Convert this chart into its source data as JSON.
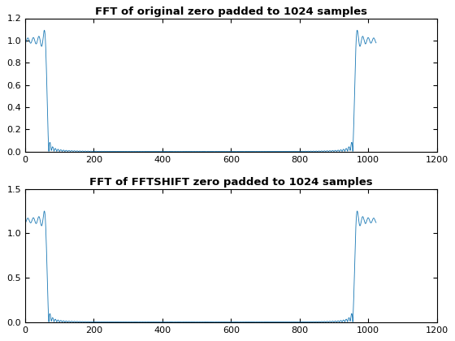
{
  "title1": "FFT of original zero padded to 1024 samples",
  "title2": "FFT of FFTSHIFT zero padded to 1024 samples",
  "line_color": "#1777b4",
  "line_width": 0.6,
  "xlim": [
    0,
    1200
  ],
  "ylim1": [
    0,
    1.2
  ],
  "ylim2": [
    0,
    1.5
  ],
  "xticks": [
    0,
    200,
    400,
    600,
    800,
    1000,
    1200
  ],
  "yticks1": [
    0,
    0.2,
    0.4,
    0.6,
    0.8,
    1.0,
    1.2
  ],
  "yticks2": [
    0,
    0.5,
    1.0,
    1.5
  ],
  "N": 1024,
  "filter_low_cutoff": 64,
  "filter_high_cutoff": 960,
  "background_color": "#ffffff",
  "title_fontsize": 9.5,
  "figsize": [
    5.6,
    4.2
  ],
  "dpi": 100
}
